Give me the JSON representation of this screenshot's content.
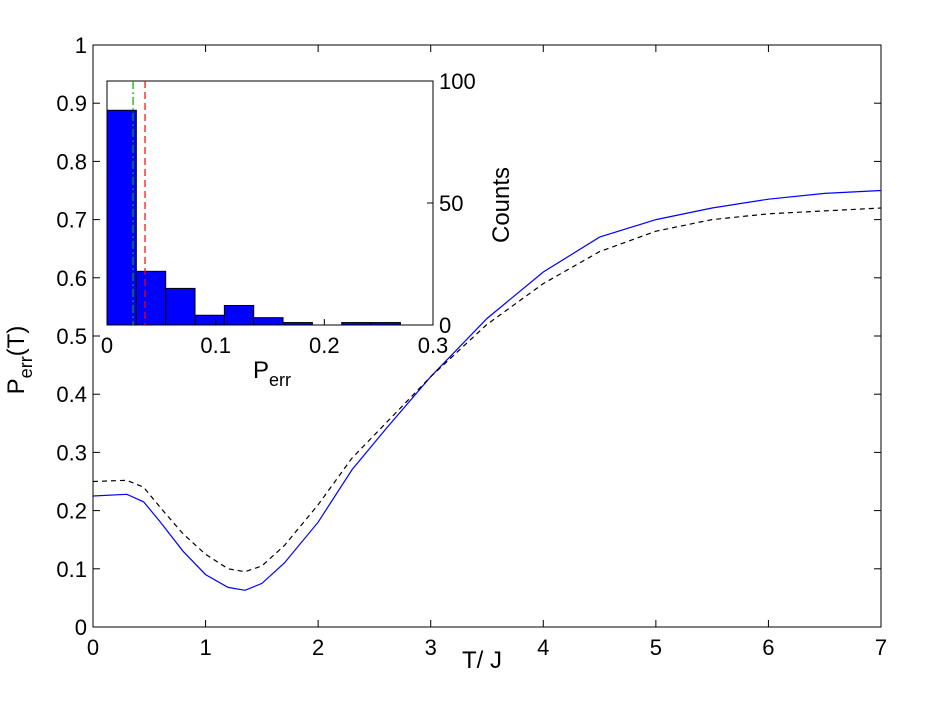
{
  "chart_data": [
    {
      "type": "line",
      "title": "",
      "xlabel": "T/ J",
      "ylabel_main": "P",
      "ylabel_sub": "err",
      "ylabel_suffix": "(T)",
      "xlim": [
        0,
        7
      ],
      "ylim": [
        0,
        1
      ],
      "xticks": [
        0,
        1,
        2,
        3,
        4,
        5,
        6,
        7
      ],
      "yticks": [
        0,
        0.1,
        0.2,
        0.3,
        0.4,
        0.5,
        0.6,
        0.7,
        0.8,
        0.9,
        1
      ],
      "ytick_labels": [
        "0",
        "0.1",
        "0.2",
        "0.3",
        "0.4",
        "0.5",
        "0.6",
        "0.7",
        "0.8",
        "0.9",
        "1"
      ],
      "grid": false,
      "series": [
        {
          "style": "solid",
          "color": "#0000ff",
          "x": [
            0,
            0.3,
            0.45,
            0.6,
            0.8,
            1.0,
            1.2,
            1.35,
            1.5,
            1.7,
            2.0,
            2.3,
            2.6,
            3.0,
            3.5,
            4.0,
            4.5,
            5.0,
            5.5,
            6.0,
            6.5,
            7.0
          ],
          "y": [
            0.225,
            0.228,
            0.215,
            0.18,
            0.13,
            0.09,
            0.068,
            0.063,
            0.075,
            0.11,
            0.18,
            0.27,
            0.34,
            0.43,
            0.53,
            0.61,
            0.67,
            0.7,
            0.72,
            0.735,
            0.745,
            0.75
          ]
        },
        {
          "style": "dashed",
          "color": "#000000",
          "x": [
            0,
            0.3,
            0.45,
            0.6,
            0.8,
            1.0,
            1.2,
            1.35,
            1.5,
            1.7,
            2.0,
            2.3,
            2.6,
            3.0,
            3.5,
            4.0,
            4.5,
            5.0,
            5.5,
            6.0,
            6.5,
            7.0
          ],
          "y": [
            0.25,
            0.252,
            0.24,
            0.205,
            0.16,
            0.125,
            0.1,
            0.095,
            0.105,
            0.14,
            0.21,
            0.29,
            0.35,
            0.43,
            0.52,
            0.59,
            0.645,
            0.68,
            0.7,
            0.71,
            0.715,
            0.72
          ]
        }
      ]
    },
    {
      "type": "bar",
      "title": "",
      "xlabel_main": "P",
      "xlabel_sub": "err",
      "ylabel": "Counts",
      "xlim": [
        0,
        0.3
      ],
      "ylim": [
        0,
        100
      ],
      "xticks": [
        0,
        0.1,
        0.2,
        0.3
      ],
      "xtick_labels": [
        "0",
        "0.1",
        "0.2",
        "0.3"
      ],
      "yticks": [
        0,
        50,
        100
      ],
      "bin_width": 0.027,
      "bin_starts": [
        0,
        0.027,
        0.054,
        0.081,
        0.108,
        0.135,
        0.162,
        0.189,
        0.216,
        0.243
      ],
      "values": [
        88,
        22,
        15,
        4,
        8,
        3,
        1,
        0,
        1,
        1
      ],
      "bar_color": "#0000ff",
      "vlines": [
        {
          "x": 0.024,
          "color": "#00aa00",
          "style": "dashdot"
        },
        {
          "x": 0.035,
          "color": "#ff0000",
          "style": "dashed"
        }
      ]
    }
  ]
}
